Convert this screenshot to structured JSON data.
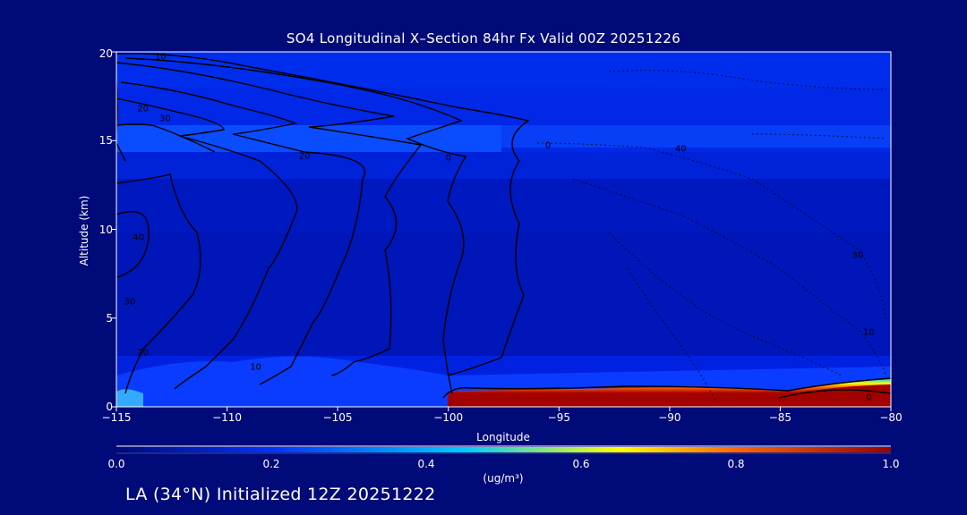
{
  "chart_data": {
    "type": "heatmap",
    "title": "SO4 Longitudinal X–Section 84hr  Fx Valid 00Z 20251226",
    "xlabel": "Longitude",
    "ylabel": "Altitude (km)",
    "xlim": [
      -115,
      -80
    ],
    "ylim": [
      0,
      20
    ],
    "xticks": [
      "−115",
      "−110",
      "−105",
      "−100",
      "−95",
      "−90",
      "−85",
      "−80"
    ],
    "yticks": [
      "0",
      "5",
      "10",
      "15",
      "20"
    ],
    "colorbar": {
      "label": "(ug/m³)",
      "range": [
        0.0,
        1.0
      ],
      "ticks": [
        "0.0",
        "0.2",
        "0.4",
        "0.6",
        "0.8",
        "1.0"
      ],
      "colors": [
        "#000a78",
        "#0033ff",
        "#00ccff",
        "#ffff00",
        "#ff6600",
        "#990000"
      ]
    },
    "field_regions": [
      {
        "name": "upper-layer",
        "lon_range": [
          -115,
          -80
        ],
        "alt_range": [
          13,
          20
        ],
        "value": 0.12
      },
      {
        "name": "tropopause-band",
        "lon_range": [
          -115,
          -99
        ],
        "alt_range": [
          14.5,
          16
        ],
        "value": 0.16
      },
      {
        "name": "boundary-layer",
        "lon_range": [
          -115,
          -80
        ],
        "alt_range": [
          0,
          2.5
        ],
        "value": 0.1
      },
      {
        "name": "surface-plume",
        "lon_range": [
          -99,
          -80
        ],
        "alt_range": [
          0,
          1.0
        ],
        "value": 0.95
      }
    ],
    "contour_labels": [
      {
        "text": "10",
        "lon": -113,
        "alt": 19.7
      },
      {
        "text": "20",
        "lon": -113.8,
        "alt": 16.8
      },
      {
        "text": "30",
        "lon": -112.8,
        "alt": 16.2
      },
      {
        "text": "20",
        "lon": -106.5,
        "alt": 14.1
      },
      {
        "text": "0",
        "lon": -100,
        "alt": 14.0
      },
      {
        "text": "0",
        "lon": -95.5,
        "alt": 14.7
      },
      {
        "text": "40",
        "lon": -89.5,
        "alt": 14.5
      },
      {
        "text": "40",
        "lon": -114,
        "alt": 9.5
      },
      {
        "text": "30",
        "lon": -114.4,
        "alt": 5.9
      },
      {
        "text": "20",
        "lon": -113.8,
        "alt": 3.0
      },
      {
        "text": "10",
        "lon": -108.7,
        "alt": 2.2
      },
      {
        "text": "30",
        "lon": -81.5,
        "alt": 8.5
      },
      {
        "text": "10",
        "lon": -81,
        "alt": 4.2
      },
      {
        "text": "0",
        "lon": -81,
        "alt": 0.5
      }
    ]
  },
  "footer": {
    "location_text": "LA (34°N) Initialized 12Z 20251222"
  }
}
